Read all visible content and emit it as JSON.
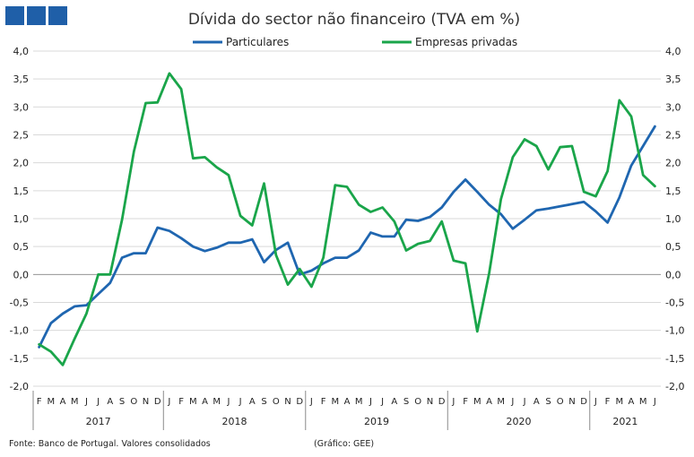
{
  "chart_data": {
    "type": "line",
    "title": "Dívida do sector não financeiro (TVA em %)",
    "footer_source": "Fonte: Banco de Portugal. Valores consolidados",
    "footer_credit": "(Gráfico: GEE)",
    "ylim": [
      -2.0,
      4.0
    ],
    "y_ticks": [
      "-2,0",
      "-1,5",
      "-1,0",
      "-0,5",
      "0,0",
      "0,5",
      "1,0",
      "1,5",
      "2,0",
      "2,5",
      "3,0",
      "3,5",
      "4,0"
    ],
    "grid": "horizontal",
    "legend_position": "top-center",
    "months": [
      "F",
      "M",
      "A",
      "M",
      "J",
      "J",
      "A",
      "S",
      "O",
      "N",
      "D",
      "J",
      "F",
      "M",
      "A",
      "M",
      "J",
      "J",
      "A",
      "S",
      "O",
      "N",
      "D",
      "J",
      "F",
      "M",
      "A",
      "M",
      "J",
      "J",
      "A",
      "S",
      "O",
      "N",
      "D",
      "J",
      "F",
      "M",
      "A",
      "M",
      "J",
      "J",
      "A",
      "S",
      "O",
      "N",
      "D",
      "J",
      "F",
      "M",
      "A",
      "M",
      "J"
    ],
    "years": [
      {
        "label": "2017",
        "start": 0,
        "end": 10
      },
      {
        "label": "2018",
        "start": 11,
        "end": 22
      },
      {
        "label": "2019",
        "start": 23,
        "end": 34
      },
      {
        "label": "2020",
        "start": 35,
        "end": 46
      },
      {
        "label": "2021",
        "start": 47,
        "end": 52
      }
    ],
    "series": [
      {
        "name": "Particulares",
        "color": "#1f66b0",
        "values": [
          -1.3,
          -0.87,
          -0.7,
          -0.57,
          -0.55,
          -0.35,
          -0.15,
          0.3,
          0.38,
          0.38,
          0.84,
          0.78,
          0.65,
          0.5,
          0.42,
          0.48,
          0.57,
          0.57,
          0.63,
          0.22,
          0.44,
          0.57,
          0.0,
          0.07,
          0.2,
          0.3,
          0.3,
          0.43,
          0.75,
          0.68,
          0.68,
          0.98,
          0.96,
          1.03,
          1.2,
          1.48,
          1.7,
          1.48,
          1.25,
          1.08,
          0.82,
          0.98,
          1.15,
          1.18,
          1.22,
          1.26,
          1.3,
          1.13,
          0.93,
          1.38,
          1.95,
          2.3,
          2.65
        ]
      },
      {
        "name": "Empresas privadas",
        "color": "#1aa54a",
        "values": [
          -1.25,
          -1.38,
          -1.62,
          -1.15,
          -0.7,
          0.0,
          0.0,
          0.98,
          2.2,
          3.07,
          3.08,
          3.6,
          3.32,
          2.08,
          2.1,
          1.92,
          1.78,
          1.05,
          0.88,
          1.63,
          0.35,
          -0.18,
          0.1,
          -0.22,
          0.3,
          1.6,
          1.57,
          1.25,
          1.12,
          1.2,
          0.95,
          0.43,
          0.55,
          0.6,
          0.95,
          0.25,
          0.2,
          -1.02,
          0.02,
          1.35,
          2.1,
          2.42,
          2.3,
          1.88,
          2.28,
          2.3,
          1.48,
          1.4,
          1.85,
          3.12,
          2.83,
          1.78,
          1.58
        ]
      }
    ]
  }
}
